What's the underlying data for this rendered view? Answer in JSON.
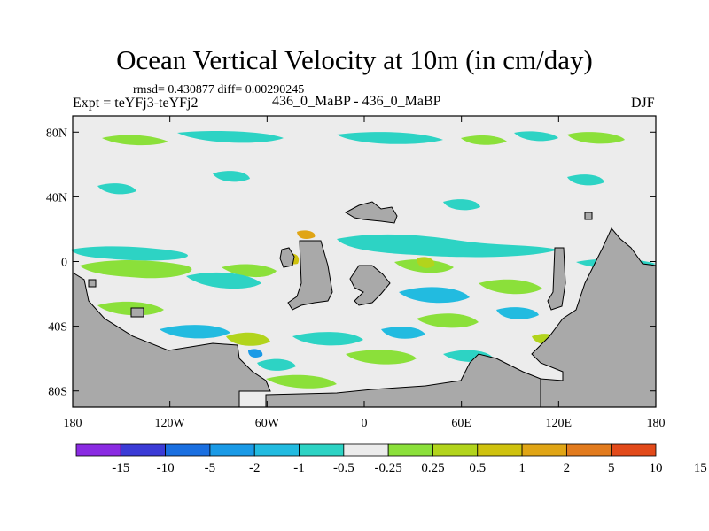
{
  "chart_data": {
    "type": "heatmap",
    "title": "Ocean Vertical Velocity at 10m (in cm/day)",
    "stats_text": "rmsd= 0.430877 diff= 0.00290245",
    "left_label": "Expt = teYFj3-teYFj2",
    "center_label": "436_0_MaBP - 436_0_MaBP",
    "right_label": "DJF",
    "x_axis": {
      "range": [
        -180,
        180
      ],
      "ticks": [
        -180,
        -120,
        -60,
        0,
        60,
        120,
        180
      ],
      "tick_labels": [
        "180",
        "120W",
        "60W",
        "0",
        "60E",
        "120E",
        "180"
      ]
    },
    "y_axis": {
      "range": [
        -90,
        90
      ],
      "ticks": [
        80,
        40,
        0,
        -40,
        -80
      ],
      "tick_labels": [
        "80N",
        "40N",
        "0",
        "40S",
        "80S"
      ]
    },
    "colorbar": {
      "colors": [
        "#8a2be2",
        "#3b3bd6",
        "#1a6fe0",
        "#1a9ae6",
        "#22bbe0",
        "#2dd3c4",
        "#ececec",
        "#8be03a",
        "#b2d41c",
        "#cfc20e",
        "#e0a515",
        "#e27b1e",
        "#e24a1a"
      ],
      "labels": [
        "-15",
        "-10",
        "-5",
        "-2",
        "-1",
        "-0.5",
        "-0.25",
        "0.25",
        "0.5",
        "1",
        "2",
        "5",
        "10",
        "15"
      ]
    },
    "land_color": "#a9a9a9",
    "background_color": "#ececec",
    "field_notes": "Mostly near-zero values (-0.25 to 0.25) with scattered patches of -1 to -0.25 (cyan) and 0.25 to 2 (green/yellow), concentrated in the tropics and Southern Ocean"
  }
}
